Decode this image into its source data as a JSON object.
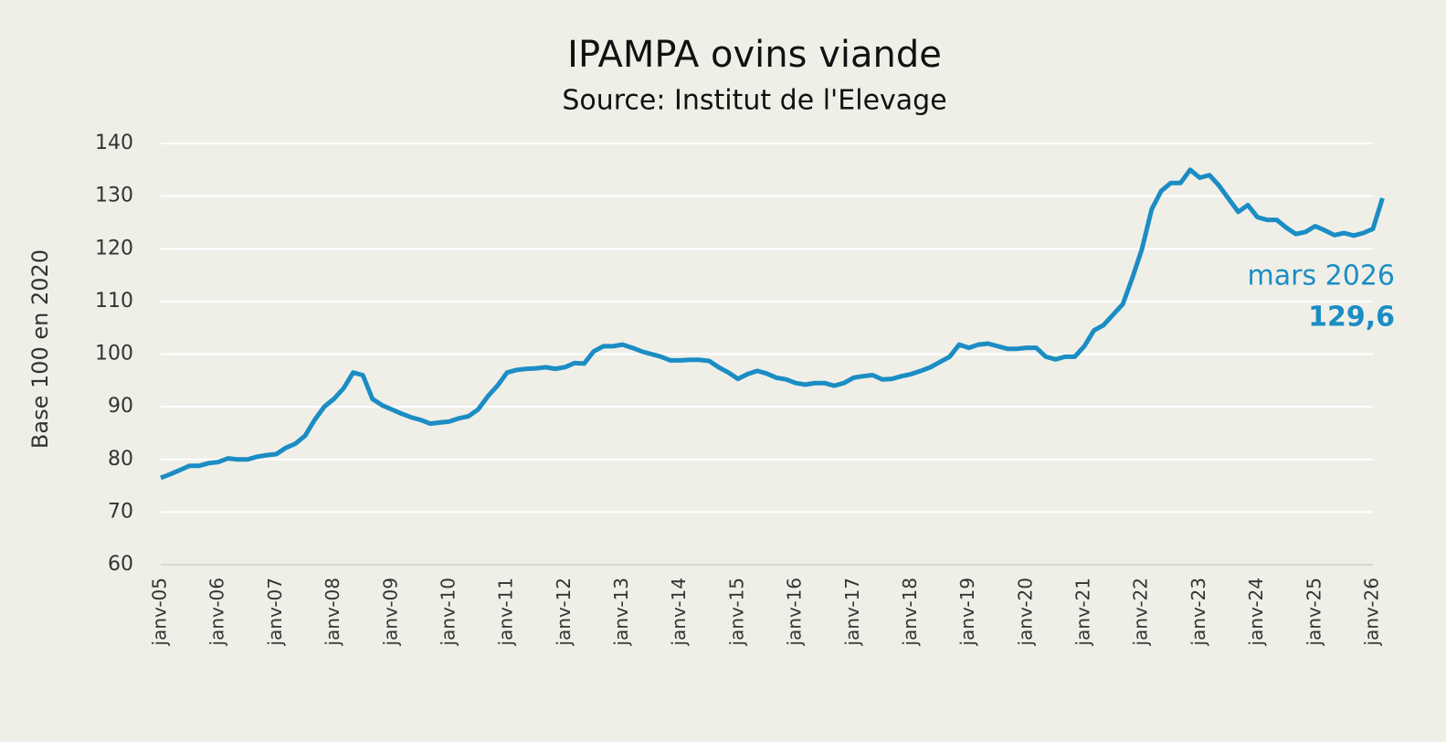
{
  "chart_data": {
    "type": "line",
    "title": "IPAMPA ovins viande",
    "subtitle": "Source: Institut de l'Elevage",
    "y_label": "Base 100 en 2020",
    "categories": [
      "janv-05",
      null,
      null,
      null,
      null,
      null,
      "janv-06",
      null,
      null,
      null,
      null,
      null,
      "janv-07",
      null,
      null,
      null,
      null,
      null,
      "janv-08",
      null,
      null,
      null,
      null,
      null,
      "janv-09",
      null,
      null,
      null,
      null,
      null,
      "janv-10",
      null,
      null,
      null,
      null,
      null,
      "janv-11",
      null,
      null,
      null,
      null,
      null,
      "janv-12",
      null,
      null,
      null,
      null,
      null,
      "janv-13",
      null,
      null,
      null,
      null,
      null,
      "janv-14",
      null,
      null,
      null,
      null,
      null,
      "janv-15",
      null,
      null,
      null,
      null,
      null,
      "janv-16",
      null,
      null,
      null,
      null,
      null,
      "janv-17",
      null,
      null,
      null,
      null,
      null,
      "janv-18",
      null,
      null,
      null,
      null,
      null,
      "janv-19",
      null,
      null,
      null,
      null,
      null,
      "janv-20",
      null,
      null,
      null,
      null,
      null,
      "janv-21",
      null,
      null,
      null,
      null,
      null,
      "janv-22",
      null,
      null,
      null,
      null,
      null,
      "janv-23",
      null,
      null,
      null,
      null,
      null,
      "janv-24",
      null,
      null,
      null,
      null,
      null,
      "janv-25",
      null,
      null,
      null,
      null,
      null,
      "janv-26",
      null
    ],
    "series": [
      {
        "name": "IPAMPA ovins viande",
        "color": "#1b8dc4",
        "values": [
          76.5,
          77.2,
          78,
          78.8,
          78.8,
          79.3,
          79.5,
          80.2,
          80,
          80,
          80.5,
          80.8,
          81,
          82.2,
          83,
          84.5,
          87.5,
          90,
          91.5,
          93.5,
          96.5,
          96,
          91.5,
          90.3,
          89.5,
          88.7,
          88,
          87.5,
          86.8,
          87,
          87.2,
          87.8,
          88.2,
          89.5,
          92,
          94,
          96.5,
          97,
          97.2,
          97.3,
          97.5,
          97.2,
          97.5,
          98.3,
          98.2,
          100.5,
          101.5,
          101.5,
          101.8,
          101.2,
          100.5,
          100,
          99.5,
          98.8,
          98.8,
          98.9,
          98.9,
          98.7,
          97.5,
          96.5,
          95.3,
          96.2,
          96.8,
          96.3,
          95.5,
          95.2,
          94.5,
          94.2,
          94.5,
          94.5,
          94,
          94.5,
          95.5,
          95.8,
          96,
          95.2,
          95.3,
          95.8,
          96.2,
          96.8,
          97.5,
          98.5,
          99.5,
          101.8,
          101.2,
          101.8,
          102,
          101.5,
          101,
          101,
          101.2,
          101.2,
          99.5,
          99,
          99.5,
          99.5,
          101.5,
          104.5,
          105.5,
          107.5,
          109.5,
          114.5,
          120,
          127.5,
          131,
          132.5,
          132.5,
          135,
          133.5,
          134,
          132,
          129.5,
          127,
          128.3,
          126,
          125.5,
          125.5,
          124,
          122.8,
          123.2,
          124.3,
          123.5,
          122.6,
          123,
          122.5,
          123,
          123.8,
          129.6
        ]
      }
    ],
    "annotation": {
      "text": "mars 2026",
      "value": 129.6,
      "value_label": "129,6"
    },
    "ylim": [
      60,
      140
    ],
    "yticks": [
      60,
      70,
      80,
      90,
      100,
      110,
      120,
      130,
      140
    ],
    "grid": true
  }
}
